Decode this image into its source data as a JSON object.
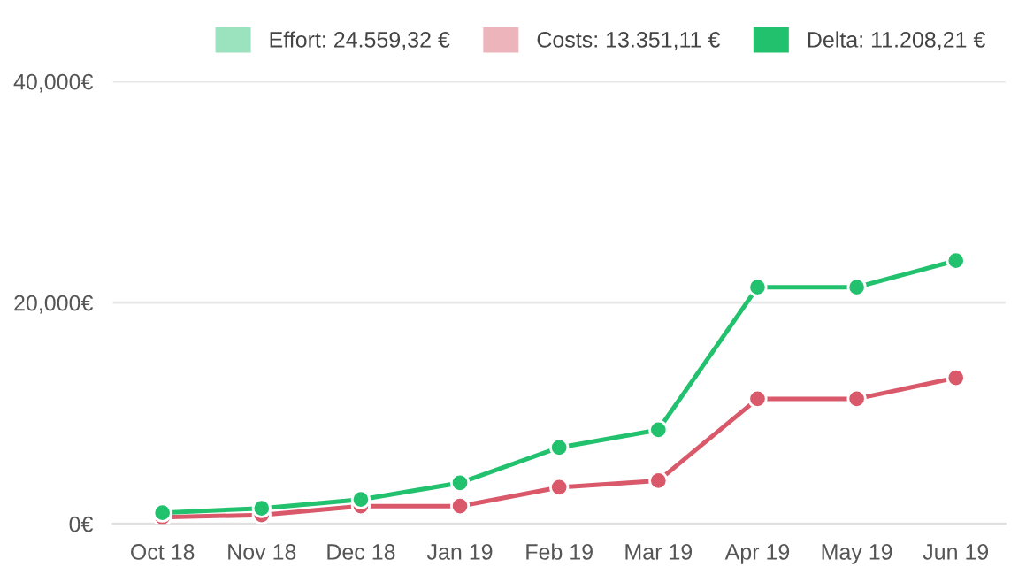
{
  "chart_data": {
    "type": "line",
    "categories": [
      "Oct 18",
      "Nov 18",
      "Dec 18",
      "Jan 19",
      "Feb 19",
      "Mar 19",
      "Apr 19",
      "May 19",
      "Jun 19"
    ],
    "series": [
      {
        "name": "Effort: 24.559,32 €",
        "color": "#21c16e",
        "values": [
          1000,
          1400,
          2200,
          3700,
          6900,
          8500,
          21400,
          21400,
          23800
        ]
      },
      {
        "name": "Costs: 13.351,11 €",
        "color": "#d9596a",
        "values": [
          600,
          800,
          1600,
          1600,
          3300,
          3900,
          11300,
          11300,
          13200
        ]
      },
      {
        "name": "Delta: 11.208,21 €",
        "color": "#21c16e",
        "values": [
          null,
          null,
          null,
          null,
          null,
          null,
          null,
          null,
          null
        ]
      }
    ],
    "ylim": [
      0,
      40000
    ],
    "yticks": [
      {
        "value": 0,
        "label": "0€"
      },
      {
        "value": 20000,
        "label": "20,000€"
      },
      {
        "value": 40000,
        "label": "40,000€"
      }
    ],
    "grid": "y",
    "legend": "top right",
    "marker": "circle",
    "line_style": "solid"
  }
}
